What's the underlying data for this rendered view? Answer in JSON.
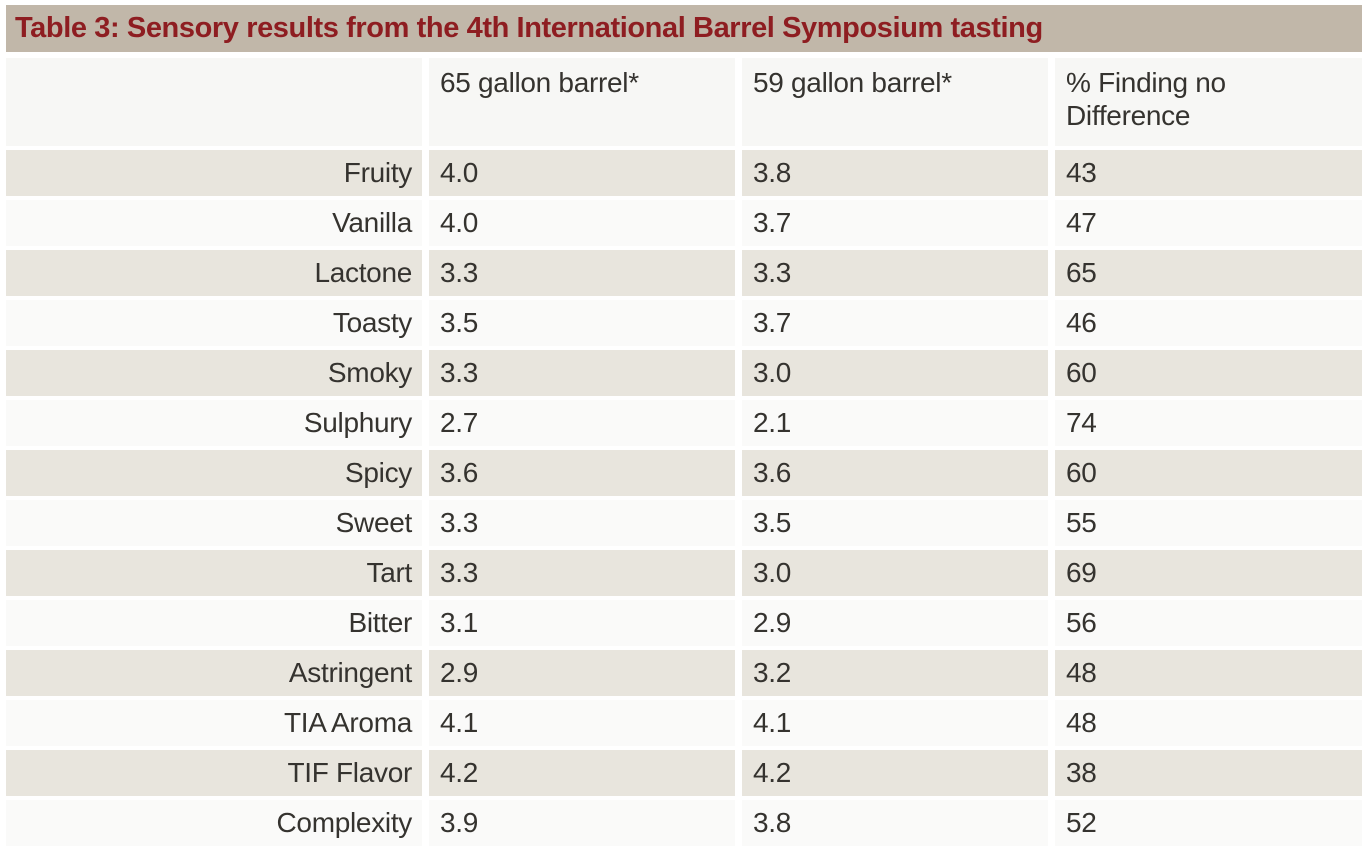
{
  "title": "Table 3: Sensory results from the 4th International Barrel Symposium tasting",
  "colors": {
    "title_bar_bg": "#c1b7a9",
    "title_text": "#8e1d21",
    "header_row_bg": "#f7f7f5",
    "row_stripe_tan": "#e8e5dd",
    "row_stripe_white": "#fafaf9",
    "body_text": "#35332f"
  },
  "table": {
    "columns": {
      "label": "",
      "barrel65": "65 gallon barrel*",
      "barrel59": "59 gallon barrel*",
      "no_difference": "% Finding no Difference"
    },
    "rows": [
      {
        "label": "Fruity",
        "barrel65": "4.0",
        "barrel59": "3.8",
        "no_difference": "43"
      },
      {
        "label": "Vanilla",
        "barrel65": "4.0",
        "barrel59": "3.7",
        "no_difference": "47"
      },
      {
        "label": "Lactone",
        "barrel65": "3.3",
        "barrel59": "3.3",
        "no_difference": "65"
      },
      {
        "label": "Toasty",
        "barrel65": "3.5",
        "barrel59": "3.7",
        "no_difference": "46"
      },
      {
        "label": "Smoky",
        "barrel65": "3.3",
        "barrel59": "3.0",
        "no_difference": "60"
      },
      {
        "label": "Sulphury",
        "barrel65": "2.7",
        "barrel59": "2.1",
        "no_difference": "74"
      },
      {
        "label": "Spicy",
        "barrel65": "3.6",
        "barrel59": "3.6",
        "no_difference": "60"
      },
      {
        "label": "Sweet",
        "barrel65": "3.3",
        "barrel59": "3.5",
        "no_difference": "55"
      },
      {
        "label": "Tart",
        "barrel65": "3.3",
        "barrel59": "3.0",
        "no_difference": "69"
      },
      {
        "label": "Bitter",
        "barrel65": "3.1",
        "barrel59": "2.9",
        "no_difference": "56"
      },
      {
        "label": "Astringent",
        "barrel65": "2.9",
        "barrel59": "3.2",
        "no_difference": "48"
      },
      {
        "label": "TIA Aroma",
        "barrel65": "4.1",
        "barrel59": "4.1",
        "no_difference": "48"
      },
      {
        "label": "TIF Flavor",
        "barrel65": "4.2",
        "barrel59": "4.2",
        "no_difference": "38"
      },
      {
        "label": "Complexity",
        "barrel65": "3.9",
        "barrel59": "3.8",
        "no_difference": "52"
      }
    ]
  }
}
